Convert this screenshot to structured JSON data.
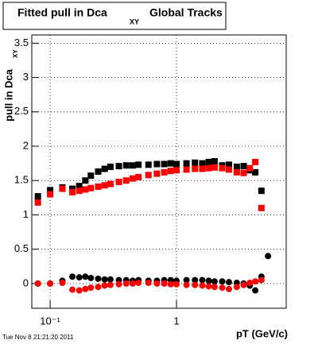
{
  "chart_data": {
    "type": "scatter",
    "title": "Fitted pull in Dca",
    "title_subscript": "XY",
    "title_tail": "Global Tracks",
    "y_label": "pull in Dca",
    "y_label_subscript": "XY",
    "x_label": "pT (GeV/c)",
    "timestamp": "Tue Nov  8 21:21:20 2011",
    "log_x": true,
    "grid": true,
    "xlim": [
      0.0716,
      7.38
    ],
    "ylim": [
      -0.36,
      3.62
    ],
    "xticks": [
      {
        "value": 0.1,
        "label": "10⁻¹"
      },
      1
    ],
    "yticks": [
      0,
      0.5,
      1,
      1.5,
      2,
      2.5,
      3,
      3.5
    ],
    "x": [
      0.08,
      0.1,
      0.125,
      0.15,
      0.17,
      0.19,
      0.21,
      0.24,
      0.27,
      0.3,
      0.35,
      0.4,
      0.45,
      0.5,
      0.6,
      0.7,
      0.8,
      0.9,
      1.0,
      1.2,
      1.4,
      1.6,
      1.8,
      2.0,
      2.3,
      2.6,
      3.0,
      3.4,
      3.8,
      4.2,
      4.7,
      5.3
    ],
    "series": [
      {
        "color": "#000000",
        "marker": "square",
        "values": [
          1.27,
          1.36,
          1.4,
          1.38,
          1.42,
          1.5,
          1.57,
          1.63,
          1.67,
          1.7,
          1.71,
          1.72,
          1.72,
          1.73,
          1.73,
          1.74,
          1.74,
          1.75,
          1.74,
          1.75,
          1.76,
          1.75,
          1.77,
          1.78,
          1.72,
          1.73,
          1.7,
          1.71,
          1.65,
          1.62,
          1.35,
          null
        ]
      },
      {
        "color": "#ff0000",
        "marker": "square",
        "values": [
          1.18,
          1.3,
          1.38,
          1.33,
          1.35,
          1.37,
          1.39,
          1.41,
          1.43,
          1.45,
          1.48,
          1.5,
          1.53,
          1.55,
          1.58,
          1.6,
          1.62,
          1.64,
          1.65,
          1.66,
          1.67,
          1.67,
          1.68,
          1.69,
          1.68,
          1.66,
          1.62,
          1.61,
          1.68,
          1.77,
          1.1,
          null
        ]
      },
      {
        "color": "#000000",
        "marker": "circle",
        "values": [
          0.0,
          0.0,
          0.04,
          0.1,
          0.09,
          0.1,
          0.08,
          0.07,
          0.06,
          0.06,
          0.05,
          0.05,
          0.04,
          0.05,
          0.04,
          0.04,
          0.05,
          0.05,
          0.04,
          0.05,
          0.05,
          0.05,
          0.04,
          0.03,
          0.03,
          0.02,
          0.01,
          0.0,
          -0.03,
          -0.1,
          0.1,
          0.4
        ]
      },
      {
        "color": "#ff0000",
        "marker": "circle",
        "values": [
          0.0,
          0.0,
          0.01,
          -0.09,
          -0.1,
          -0.08,
          -0.06,
          -0.05,
          -0.03,
          -0.02,
          -0.01,
          0.0,
          0.0,
          0.01,
          0.01,
          0.0,
          0.0,
          -0.01,
          -0.01,
          -0.02,
          -0.02,
          -0.03,
          -0.04,
          -0.05,
          -0.06,
          -0.08,
          -0.05,
          -0.02,
          0.01,
          0.03,
          0.05,
          null
        ]
      }
    ]
  }
}
